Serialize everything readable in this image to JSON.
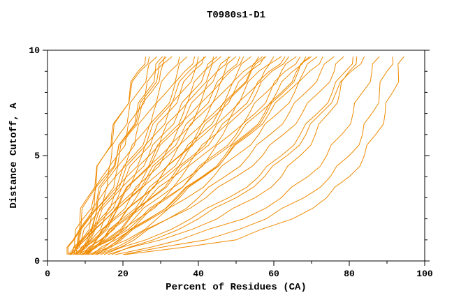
{
  "title": "T0980s1-D1",
  "chart_data": {
    "type": "line",
    "title": "T0980s1-D1",
    "xlabel": "Percent of Residues (CA)",
    "ylabel": "Distance Cutoff, A",
    "xlim": [
      0,
      100
    ],
    "ylim": [
      0,
      10
    ],
    "x_ticks": [
      0,
      20,
      40,
      60,
      80,
      100
    ],
    "x_minor_ticks": [
      10,
      30,
      50,
      70,
      90
    ],
    "y_ticks": [
      0,
      5,
      10
    ],
    "y_minor_ticks": [
      1,
      2,
      3,
      4,
      6,
      7,
      8,
      9
    ],
    "line_color": "#ef8a00",
    "axis_color": "#000000",
    "legend": "none",
    "grid": false,
    "y_levels": [
      0.3,
      1,
      2,
      3,
      4,
      5,
      6,
      7,
      8,
      9,
      9.7
    ],
    "series": [
      {
        "x": [
          5.5,
          7,
          9,
          11,
          13,
          15,
          17,
          19.5,
          22,
          24.5,
          27
        ]
      },
      {
        "x": [
          6,
          8,
          10.5,
          12.5,
          14.5,
          17,
          19,
          21.5,
          24,
          26.5,
          29
        ]
      },
      {
        "x": [
          6.5,
          9,
          11.5,
          14,
          16,
          18.5,
          21,
          23.5,
          26,
          28.5,
          31
        ]
      },
      {
        "x": [
          5.8,
          8.5,
          11,
          13.5,
          16.5,
          19,
          21.5,
          24.5,
          27.5,
          30,
          33
        ]
      },
      {
        "x": [
          7,
          9.5,
          12.5,
          15.5,
          18,
          21,
          23.5,
          26.5,
          29.5,
          32.5,
          35
        ]
      },
      {
        "x": [
          6.2,
          9,
          12,
          15,
          18,
          21.5,
          25,
          28,
          31.5,
          34.5,
          37
        ]
      },
      {
        "x": [
          7.5,
          10,
          13,
          16.5,
          20,
          23.5,
          27,
          30.5,
          34,
          37.5,
          40
        ]
      },
      {
        "x": [
          6.8,
          10.5,
          14,
          17.5,
          21,
          25,
          28.5,
          32,
          35.5,
          39,
          42
        ]
      },
      {
        "x": [
          8,
          11.5,
          15,
          19,
          23,
          27,
          30.5,
          34.5,
          38,
          41.5,
          44
        ]
      },
      {
        "x": [
          7.2,
          11,
          15.5,
          19.5,
          24,
          28,
          32,
          36,
          39.5,
          43,
          46
        ]
      },
      {
        "x": [
          8.5,
          12.5,
          16.5,
          21,
          25.5,
          30,
          34,
          38,
          41.5,
          45,
          48
        ]
      },
      {
        "x": [
          9,
          13,
          17.5,
          22,
          26.5,
          31,
          35.5,
          39.5,
          43.5,
          47,
          50
        ]
      },
      {
        "x": [
          7.8,
          12,
          17,
          22,
          27,
          32,
          36.5,
          41,
          45,
          48.5,
          52
        ]
      },
      {
        "x": [
          8.2,
          13,
          18,
          23.5,
          28.5,
          33.5,
          38,
          42.5,
          46.5,
          50.5,
          54
        ]
      },
      {
        "x": [
          9.5,
          14,
          19.5,
          25,
          30,
          35,
          39.5,
          44,
          48,
          52,
          56
        ]
      },
      {
        "x": [
          8.8,
          14.5,
          20.5,
          26,
          31.5,
          36.5,
          41.5,
          46,
          50,
          54,
          58
        ]
      },
      {
        "x": [
          10,
          15.5,
          21.5,
          27.5,
          33,
          38.5,
          43.5,
          48,
          52,
          56,
          60
        ]
      },
      {
        "x": [
          9.2,
          15,
          21,
          27,
          33.5,
          39,
          44.5,
          49,
          53.5,
          57.5,
          62
        ]
      },
      {
        "x": [
          10.5,
          16.5,
          23,
          29.5,
          35.5,
          41,
          46.5,
          51,
          55.5,
          59.5,
          64
        ]
      },
      {
        "x": [
          11,
          17.5,
          24,
          31,
          37.5,
          43,
          48.5,
          53.5,
          58,
          62,
          66
        ]
      },
      {
        "x": [
          12,
          18,
          25,
          32,
          38,
          44,
          50,
          55,
          59,
          63,
          67
        ]
      },
      {
        "x": [
          11.5,
          19,
          27,
          34,
          41,
          47,
          52.5,
          57.5,
          62,
          66,
          70
        ]
      },
      {
        "x": [
          13,
          21,
          29,
          37,
          44,
          50,
          56,
          61,
          65.5,
          69.5,
          73
        ]
      },
      {
        "x": [
          14,
          23,
          32,
          40,
          47,
          53.5,
          59,
          64,
          68.5,
          72.5,
          76
        ]
      },
      {
        "x": [
          16,
          30,
          45,
          55,
          62,
          67,
          71,
          74.5,
          77.5,
          80,
          82
        ]
      },
      {
        "x": [
          18,
          35,
          52,
          62,
          69,
          74,
          78,
          81,
          83.5,
          86,
          88
        ]
      },
      {
        "x": [
          20,
          42,
          58,
          68,
          75,
          80,
          83.5,
          86,
          88,
          90,
          91.5
        ]
      },
      {
        "x": [
          20.5,
          50,
          65,
          74,
          80,
          84,
          87,
          89.5,
          91.5,
          93,
          94.5
        ]
      },
      {
        "x": [
          15,
          26,
          38,
          48,
          56,
          62,
          67,
          71.5,
          75.5,
          79,
          81
        ]
      },
      {
        "x": [
          13,
          22,
          32,
          42,
          50,
          57,
          62.5,
          67.5,
          72,
          76,
          78.5
        ]
      },
      {
        "x": [
          6.4,
          9.2,
          12.4,
          15.8,
          19.2,
          22.8,
          26.2,
          29.8,
          33.2,
          36.4,
          39
        ]
      },
      {
        "x": [
          7.4,
          10.8,
          14.6,
          18.6,
          22.6,
          26.8,
          30.6,
          34.6,
          38.2,
          41.8,
          45
        ]
      },
      {
        "x": [
          8.6,
          12.8,
          17.2,
          21.8,
          26.4,
          31,
          35.4,
          39.8,
          43.8,
          47.8,
          51
        ]
      },
      {
        "x": [
          9.8,
          14.6,
          19.8,
          25.2,
          30.4,
          35.6,
          40.4,
          45.2,
          49.6,
          53.8,
          57
        ]
      },
      {
        "x": [
          10.8,
          16,
          21.8,
          27.8,
          33.6,
          39.2,
          44.6,
          49.8,
          54.4,
          58.8,
          63
        ]
      },
      {
        "x": [
          6,
          8.2,
          10.8,
          13.2,
          15.8,
          18.4,
          21,
          23.6,
          26.2,
          28.6,
          30.5
        ]
      },
      {
        "x": [
          6.9,
          10,
          13.6,
          17.2,
          20.8,
          24.6,
          28.2,
          31.8,
          35.2,
          38.6,
          41.5
        ]
      },
      {
        "x": [
          7.7,
          11.4,
          15.6,
          19.8,
          24.2,
          28.6,
          32.8,
          37,
          41,
          45,
          48.5
        ]
      },
      {
        "x": [
          9.4,
          14.2,
          19.4,
          24.8,
          30,
          35.2,
          40.2,
          45,
          49.4,
          53.6,
          57.5
        ]
      },
      {
        "x": [
          12.5,
          19.5,
          27.5,
          35,
          41.5,
          47.5,
          53,
          58,
          62.5,
          66.5,
          69.5
        ]
      },
      {
        "x": [
          5.2,
          6.8,
          8.6,
          10.6,
          12.8,
          15,
          17.4,
          19.6,
          21.8,
          24,
          26
        ]
      },
      {
        "x": [
          5.5,
          7.2,
          9.4,
          12.2,
          15.2,
          18.4,
          21.2,
          24,
          26.8,
          29.4,
          31.5
        ]
      },
      {
        "x": [
          10.2,
          16.8,
          24.4,
          31.4,
          38.4,
          44.8,
          50.8,
          56,
          60.8,
          65,
          68.5
        ]
      },
      {
        "x": [
          11.8,
          18.8,
          26.8,
          34.4,
          41.2,
          47.6,
          53.6,
          58.8,
          63.6,
          68,
          71.5
        ]
      },
      {
        "x": [
          17,
          28,
          40,
          50,
          57.5,
          63.5,
          68.5,
          72.5,
          76.5,
          80.5,
          84
        ]
      }
    ]
  }
}
